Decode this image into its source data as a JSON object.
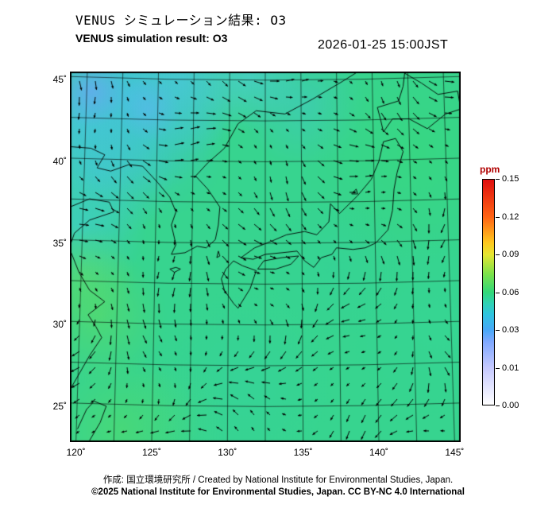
{
  "header": {
    "title_jp": "VENUS シミュレーション結果: O3",
    "title_en": "VENUS simulation result: O3",
    "timestamp": "2026-01-25 15:00JST"
  },
  "chart_data": {
    "type": "heatmap",
    "title": "VENUS simulation result: O3",
    "subtitle_jp": "VENUS シミュレーション結果: O3",
    "timestamp": "2026-01-25 15:00JST",
    "variable": "O3 mixing ratio",
    "units": "ppm",
    "overlay": "surface wind vector arrows (black)",
    "region": "East Asia / Japan",
    "x_axis": {
      "label": "longitude",
      "range": [
        119.6,
        145.4
      ],
      "tick_values": [
        120,
        125,
        130,
        135,
        140,
        145
      ],
      "tick_labels": [
        "120˚",
        "125˚",
        "130˚",
        "135˚",
        "140˚",
        "145˚"
      ],
      "grid_interval_deg": 2.5
    },
    "y_axis": {
      "label": "latitude",
      "range": [
        22.8,
        45.5
      ],
      "tick_values": [
        45,
        40,
        35,
        30,
        25
      ],
      "tick_labels": [
        "45˚",
        "40˚",
        "35˚",
        "30˚",
        "25˚"
      ],
      "grid_interval_deg": 2.5
    },
    "colorbar": {
      "label": "ppm",
      "range": [
        0.0,
        0.15
      ],
      "tick_labels": [
        "0.15",
        "0.12",
        "0.09",
        "0.06",
        "0.03",
        "0.01",
        "0.00"
      ],
      "stops": [
        [
          0.0,
          "#ffffff"
        ],
        [
          0.167,
          "#c4c8ff"
        ],
        [
          0.28,
          "#7fa8ff"
        ],
        [
          0.333,
          "#47a8f7"
        ],
        [
          0.4,
          "#2fc4e0"
        ],
        [
          0.45,
          "#2fd2b4"
        ],
        [
          0.5,
          "#32d878"
        ],
        [
          0.58,
          "#7be24a"
        ],
        [
          0.667,
          "#e6e632"
        ],
        [
          0.72,
          "#ffc81e"
        ],
        [
          0.833,
          "#ff6414"
        ],
        [
          1.0,
          "#df0f0f"
        ]
      ]
    },
    "field": {
      "description": "Mostly uniform O3 around 0.04-0.05 ppm (teal-green) over the whole domain; lower values near 0.03 ppm (cyan-blue) over northeast China and the northern Sea of Japan; slightly higher values near 0.05-0.06 ppm (brighter green) along the southeast China coast and far southwest corner.",
      "dominant_value_ppm": 0.045,
      "base_color": "#37d48f",
      "blobs": [
        [
          123.5,
          44.0,
          130,
          "#46bfe8",
          0.8
        ],
        [
          120.5,
          42.5,
          100,
          "#4cc0ea",
          0.6
        ],
        [
          127.0,
          44.8,
          90,
          "#4fc6e6",
          0.6
        ],
        [
          131.5,
          45.2,
          70,
          "#55cbe8",
          0.5
        ],
        [
          121.5,
          39.5,
          95,
          "#44c8d8",
          0.6
        ],
        [
          120.3,
          36.0,
          85,
          "#42ccd4",
          0.55
        ],
        [
          124.5,
          41.5,
          110,
          "#3fc6cf",
          0.45
        ],
        [
          135.0,
          43.5,
          80,
          "#4ac2e2",
          0.35
        ],
        [
          121.0,
          44.3,
          45,
          "#6aa7f5",
          0.7
        ],
        [
          124.8,
          43.2,
          40,
          "#5fb5f2",
          0.5
        ],
        [
          142.5,
          40.5,
          140,
          "#38da74",
          0.45
        ],
        [
          144.0,
          30.0,
          120,
          "#34d89c",
          0.3
        ],
        [
          121.5,
          30.5,
          85,
          "#62dc60",
          0.5
        ],
        [
          120.5,
          33.0,
          65,
          "#6ade5c",
          0.4
        ],
        [
          123.0,
          23.6,
          95,
          "#58dc64",
          0.5
        ],
        [
          126.5,
          24.5,
          70,
          "#46d87e",
          0.35
        ],
        [
          131.0,
          26.5,
          120,
          "#36d2a8",
          0.3
        ],
        [
          137.0,
          33.5,
          90,
          "#32d0a0",
          0.3
        ]
      ]
    },
    "wind": {
      "spacing_px": 20,
      "color": "#000000",
      "description": "Northwesterly flow (arrows pointing southeast) across the northern half, cyclonic swirls mid-domain, easterly flow (arrows pointing west) across the southern third."
    },
    "coastlines": [
      [
        [
          119.6,
          40.9
        ],
        [
          121.0,
          40.8
        ],
        [
          121.9,
          40.4
        ],
        [
          121.4,
          39.6
        ],
        [
          122.3,
          39.4
        ],
        [
          123.5,
          39.8
        ],
        [
          124.4,
          39.7
        ],
        [
          125.4,
          38.7
        ],
        [
          126.2,
          37.8
        ],
        [
          126.6,
          36.9
        ],
        [
          126.3,
          36.1
        ],
        [
          126.6,
          34.9
        ],
        [
          126.3,
          34.3
        ],
        [
          127.2,
          34.4
        ],
        [
          128.0,
          34.8
        ],
        [
          128.6,
          34.7
        ],
        [
          129.2,
          35.2
        ],
        [
          129.4,
          36.1
        ],
        [
          129.5,
          37.2
        ],
        [
          128.7,
          38.3
        ],
        [
          127.9,
          39.1
        ],
        [
          128.7,
          39.9
        ],
        [
          129.8,
          40.8
        ],
        [
          130.7,
          42.3
        ],
        [
          131.9,
          43.1
        ],
        [
          133.8,
          42.9
        ],
        [
          135.6,
          43.8
        ],
        [
          137.6,
          44.9
        ],
        [
          138.8,
          45.6
        ]
      ],
      [
        [
          119.6,
          37.2
        ],
        [
          120.9,
          37.7
        ],
        [
          122.2,
          37.5
        ],
        [
          122.5,
          36.9
        ],
        [
          120.9,
          36.4
        ],
        [
          119.9,
          35.6
        ],
        [
          119.6,
          34.8
        ]
      ],
      [
        [
          119.6,
          34.6
        ],
        [
          120.2,
          33.2
        ],
        [
          120.9,
          32.1
        ],
        [
          121.9,
          31.4
        ],
        [
          120.8,
          30.6
        ],
        [
          121.3,
          29.9
        ],
        [
          121.7,
          29.2
        ],
        [
          120.9,
          28.1
        ],
        [
          120.1,
          26.8
        ],
        [
          119.6,
          26.0
        ]
      ],
      [
        [
          120.1,
          23.6
        ],
        [
          120.7,
          24.8
        ],
        [
          121.2,
          25.3
        ],
        [
          122.0,
          25.0
        ],
        [
          121.6,
          24.0
        ],
        [
          120.9,
          22.9
        ]
      ],
      [
        [
          130.4,
          31.3
        ],
        [
          129.8,
          32.1
        ],
        [
          129.6,
          32.8
        ],
        [
          129.9,
          33.4
        ],
        [
          130.4,
          33.9
        ],
        [
          131.0,
          33.6
        ],
        [
          131.9,
          33.3
        ],
        [
          131.5,
          32.2
        ],
        [
          130.7,
          31.0
        ],
        [
          130.4,
          31.3
        ]
      ],
      [
        [
          132.0,
          33.4
        ],
        [
          133.2,
          33.4
        ],
        [
          134.2,
          33.7
        ],
        [
          134.7,
          34.2
        ],
        [
          133.6,
          34.1
        ],
        [
          132.4,
          33.9
        ],
        [
          132.0,
          33.4
        ]
      ],
      [
        [
          130.9,
          34.1
        ],
        [
          131.8,
          34.7
        ],
        [
          132.9,
          35.1
        ],
        [
          133.9,
          35.5
        ],
        [
          135.1,
          35.7
        ],
        [
          135.9,
          35.5
        ],
        [
          136.7,
          36.3
        ],
        [
          136.8,
          37.4
        ],
        [
          137.4,
          36.8
        ],
        [
          138.6,
          37.9
        ],
        [
          139.5,
          38.9
        ],
        [
          140.0,
          40.0
        ],
        [
          140.3,
          41.2
        ],
        [
          141.1,
          41.4
        ],
        [
          141.6,
          40.6
        ],
        [
          141.2,
          39.3
        ],
        [
          141.0,
          38.3
        ],
        [
          140.9,
          37.0
        ],
        [
          140.6,
          35.8
        ],
        [
          139.8,
          35.0
        ],
        [
          139.1,
          34.7
        ],
        [
          138.3,
          34.6
        ],
        [
          137.2,
          34.7
        ],
        [
          136.9,
          34.3
        ],
        [
          136.2,
          34.1
        ],
        [
          135.7,
          33.5
        ],
        [
          135.1,
          33.9
        ],
        [
          134.6,
          34.5
        ],
        [
          133.6,
          34.4
        ],
        [
          132.5,
          34.3
        ],
        [
          131.7,
          34.0
        ],
        [
          130.9,
          34.1
        ]
      ],
      [
        [
          140.3,
          41.8
        ],
        [
          140.1,
          42.6
        ],
        [
          139.9,
          43.3
        ],
        [
          141.3,
          43.7
        ],
        [
          141.6,
          44.6
        ],
        [
          141.7,
          45.4
        ],
        [
          142.8,
          44.8
        ],
        [
          143.9,
          44.1
        ],
        [
          145.2,
          44.3
        ],
        [
          145.4,
          43.2
        ],
        [
          144.4,
          42.9
        ],
        [
          143.2,
          42.0
        ],
        [
          142.0,
          42.6
        ],
        [
          140.9,
          42.6
        ],
        [
          140.3,
          41.8
        ]
      ],
      [
        [
          141.9,
          45.6
        ],
        [
          142.2,
          46.1
        ],
        [
          142.6,
          45.6
        ],
        [
          143.0,
          46.1
        ]
      ],
      [
        [
          126.2,
          33.4
        ],
        [
          126.6,
          33.5
        ],
        [
          126.9,
          33.4
        ],
        [
          126.5,
          33.2
        ],
        [
          126.2,
          33.4
        ]
      ],
      [
        [
          138.2,
          38.0
        ],
        [
          138.5,
          38.3
        ],
        [
          138.6,
          38.0
        ],
        [
          138.2,
          38.0
        ]
      ],
      [
        [
          129.3,
          34.1
        ],
        [
          129.4,
          34.5
        ],
        [
          129.5,
          34.2
        ],
        [
          129.3,
          34.1
        ]
      ]
    ]
  },
  "footer": {
    "credit": "作成: 国立環境研究所 / Created by National Institute for Environmental Studies, Japan.",
    "copyright": "©2025 National Institute for Environmental Studies, Japan. CC BY-NC 4.0 International"
  }
}
